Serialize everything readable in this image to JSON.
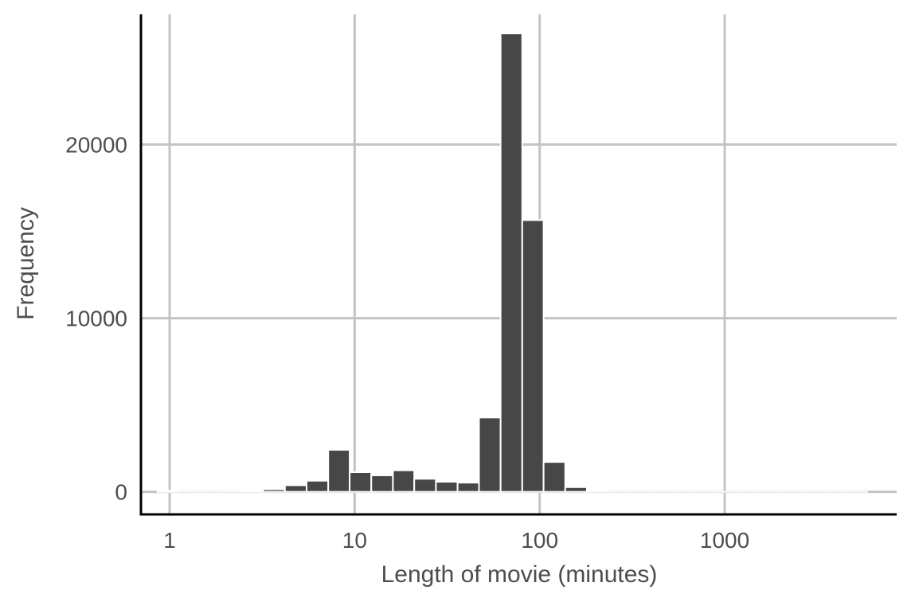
{
  "chart_data": {
    "type": "bar",
    "subtype": "histogram",
    "xlabel": "Length of movie (minutes)",
    "ylabel": "Frequency",
    "x_scale": "log10",
    "xlim": [
      0.7,
      8500
    ],
    "ylim": [
      -1300,
      27500
    ],
    "x_ticks": [
      1,
      10,
      100,
      1000
    ],
    "x_tick_labels": [
      "1",
      "10",
      "100",
      "1000"
    ],
    "y_ticks": [
      0,
      10000,
      20000
    ],
    "y_tick_labels": [
      "0",
      "10000",
      "20000"
    ],
    "grid": true,
    "bar_color": "#474747",
    "bar_outline": "#ffffff",
    "bins": [
      {
        "x_min": 0.86,
        "x_max": 1.1,
        "count": 70
      },
      {
        "x_min": 1.1,
        "x_max": 1.45,
        "count": 10
      },
      {
        "x_min": 1.45,
        "x_max": 1.88,
        "count": 5
      },
      {
        "x_min": 1.88,
        "x_max": 2.45,
        "count": 10
      },
      {
        "x_min": 2.45,
        "x_max": 3.2,
        "count": 40
      },
      {
        "x_min": 3.2,
        "x_max": 4.2,
        "count": 150
      },
      {
        "x_min": 4.2,
        "x_max": 5.5,
        "count": 380
      },
      {
        "x_min": 5.5,
        "x_max": 7.2,
        "count": 640
      },
      {
        "x_min": 7.2,
        "x_max": 9.4,
        "count": 2420
      },
      {
        "x_min": 9.4,
        "x_max": 12.3,
        "count": 1130
      },
      {
        "x_min": 12.3,
        "x_max": 16.1,
        "count": 950
      },
      {
        "x_min": 16.1,
        "x_max": 21.0,
        "count": 1240
      },
      {
        "x_min": 21.0,
        "x_max": 27.5,
        "count": 750
      },
      {
        "x_min": 27.5,
        "x_max": 36.0,
        "count": 580
      },
      {
        "x_min": 36.0,
        "x_max": 47.0,
        "count": 530
      },
      {
        "x_min": 47.0,
        "x_max": 61.5,
        "count": 4280
      },
      {
        "x_min": 61.5,
        "x_max": 80.5,
        "count": 26400
      },
      {
        "x_min": 80.5,
        "x_max": 105.0,
        "count": 15650
      },
      {
        "x_min": 105.0,
        "x_max": 137.5,
        "count": 1720
      },
      {
        "x_min": 137.5,
        "x_max": 180.0,
        "count": 270
      },
      {
        "x_min": 180.0,
        "x_max": 235.0,
        "count": 20
      },
      {
        "x_min": 235.0,
        "x_max": 308.0,
        "count": 5
      },
      {
        "x_min": 308.0,
        "x_max": 402.0,
        "count": 5
      },
      {
        "x_min": 402.0,
        "x_max": 526.0,
        "count": 3
      },
      {
        "x_min": 526.0,
        "x_max": 688.0,
        "count": 3
      },
      {
        "x_min": 688.0,
        "x_max": 900.0,
        "count": 2
      },
      {
        "x_min": 900.0,
        "x_max": 1178.0,
        "count": 2
      },
      {
        "x_min": 1178.0,
        "x_max": 1540.0,
        "count": 2
      },
      {
        "x_min": 1540.0,
        "x_max": 2015.0,
        "count": 2
      },
      {
        "x_min": 2015.0,
        "x_max": 2636.0,
        "count": 2
      },
      {
        "x_min": 2636.0,
        "x_max": 3448.0,
        "count": 2
      },
      {
        "x_min": 3448.0,
        "x_max": 4510.0,
        "count": 2
      },
      {
        "x_min": 4510.0,
        "x_max": 5900.0,
        "count": 2
      }
    ]
  }
}
